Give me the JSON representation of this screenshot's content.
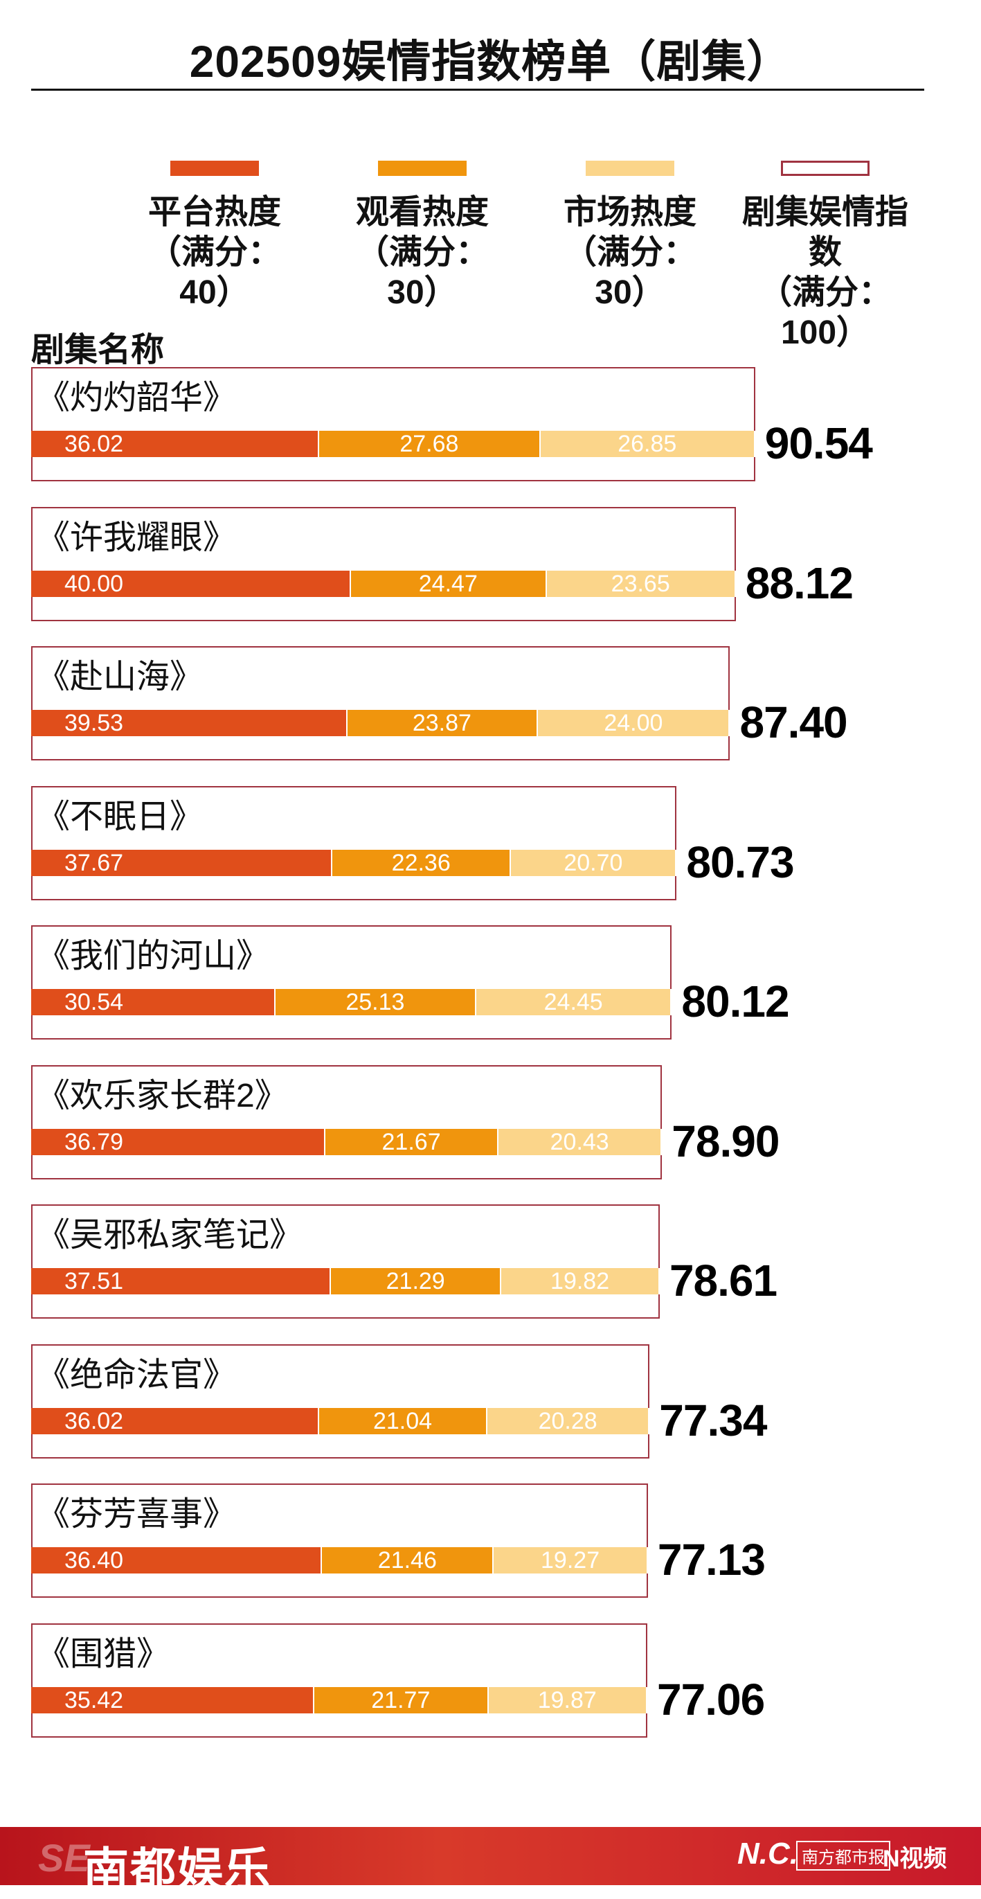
{
  "title": "202509娱情指数榜单（剧集）",
  "legend": [
    {
      "label": "平台热度",
      "max": "（满分：40）",
      "color": "#e04e1b",
      "style": "fill"
    },
    {
      "label": "观看热度",
      "max": "（满分：30）",
      "color": "#f0950d",
      "style": "fill"
    },
    {
      "label": "市场热度",
      "max": "（满分：30）",
      "color": "#fbd58a",
      "style": "fill"
    },
    {
      "label": "剧集娱情指数",
      "max": "（满分：100）",
      "color": "#a03340",
      "style": "outline"
    }
  ],
  "column_header": "剧集名称",
  "chart_data": {
    "type": "bar",
    "stacked": true,
    "orientation": "horizontal",
    "xlim": [
      0,
      100
    ],
    "categories": [
      "《灼灼韶华》",
      "《许我耀眼》",
      "《赴山海》",
      "《不眠日》",
      "《我们的河山》",
      "《欢乐家长群2》",
      "《吴邪私家笔记》",
      "《绝命法官》",
      "《芬芳喜事》",
      "《围猎》"
    ],
    "series": [
      {
        "name": "平台热度",
        "values": [
          "36.02",
          "40.00",
          "39.53",
          "37.67",
          "30.54",
          "36.79",
          "37.51",
          "36.02",
          "36.40",
          "35.42"
        ]
      },
      {
        "name": "观看热度",
        "values": [
          "27.68",
          "24.47",
          "23.87",
          "22.36",
          "25.13",
          "21.67",
          "21.29",
          "21.04",
          "21.46",
          "21.77"
        ]
      },
      {
        "name": "市场热度",
        "values": [
          "26.85",
          "23.65",
          "24.00",
          "20.70",
          "24.45",
          "20.43",
          "19.82",
          "20.28",
          "19.27",
          "19.87"
        ]
      }
    ],
    "totals": [
      "90.54",
      "88.12",
      "87.40",
      "80.73",
      "80.12",
      "78.90",
      "78.61",
      "77.34",
      "77.13",
      "77.06"
    ]
  },
  "footer": {
    "mark": "SE",
    "brand": "南都娱乐",
    "nc": "N.C.",
    "paper": "南方都市报",
    "video": "N视频"
  }
}
